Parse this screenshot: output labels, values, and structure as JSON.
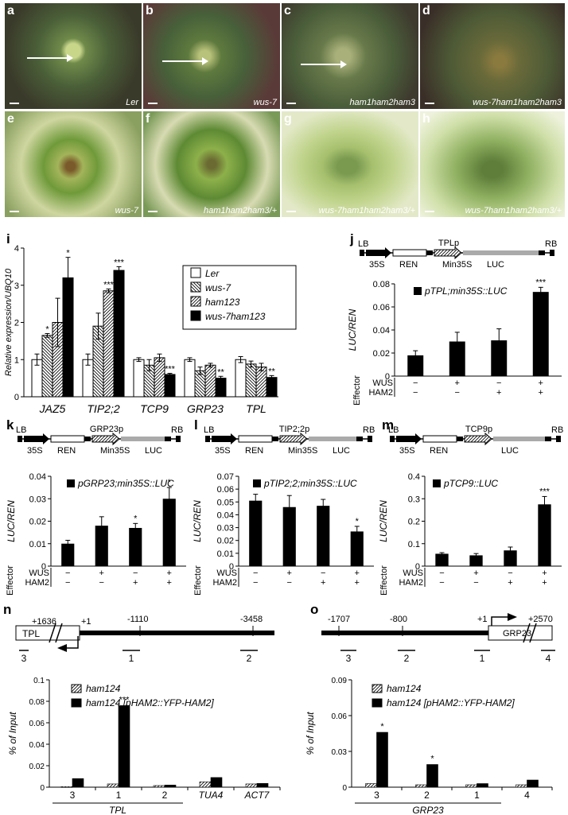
{
  "photos": [
    {
      "letter": "a",
      "caption": "Ler"
    },
    {
      "letter": "b",
      "caption": "wus-7"
    },
    {
      "letter": "c",
      "caption": "ham1ham2ham3"
    },
    {
      "letter": "d",
      "caption": "wus-7ham1ham2ham3"
    },
    {
      "letter": "e",
      "caption": "wus-7"
    },
    {
      "letter": "f",
      "caption": "ham1ham2ham3/+"
    },
    {
      "letter": "g",
      "caption": "wus-7ham1ham2ham3/+"
    },
    {
      "letter": "h",
      "caption": "wus-7ham1ham2ham3/+"
    }
  ],
  "chart_data": [
    {
      "panel": "i",
      "type": "bar",
      "ylabel": "Relative expression/UBQ10",
      "ylim": [
        0,
        4
      ],
      "yticks": [
        0,
        1,
        2,
        3,
        4
      ],
      "categories": [
        "JAZ5",
        "TIP2;2",
        "TCP9",
        "GRP23",
        "TPL"
      ],
      "series": [
        {
          "name": "Ler",
          "values": [
            1.0,
            1.0,
            1.0,
            1.0,
            1.0
          ],
          "errors": [
            0.15,
            0.15,
            0.05,
            0.05,
            0.08
          ]
        },
        {
          "name": "wus-7",
          "values": [
            1.65,
            1.9,
            0.85,
            0.7,
            0.88
          ],
          "errors": [
            0.05,
            0.35,
            0.15,
            0.1,
            0.08
          ]
        },
        {
          "name": "ham123",
          "values": [
            2.0,
            2.85,
            1.05,
            0.85,
            0.8
          ],
          "errors": [
            0.65,
            0.05,
            0.1,
            0.05,
            0.1
          ]
        },
        {
          "name": "wus-7ham123",
          "values": [
            3.2,
            3.4,
            0.6,
            0.5,
            0.52
          ],
          "errors": [
            0.55,
            0.1,
            0.03,
            0.05,
            0.05
          ]
        }
      ],
      "sig": [
        [
          "",
          "*",
          "",
          "*"
        ],
        [
          "",
          "",
          "***",
          "***"
        ],
        [
          "",
          "",
          "",
          "***"
        ],
        [
          "",
          "",
          "",
          "**"
        ],
        [
          "",
          "",
          "",
          "**"
        ]
      ]
    },
    {
      "panel": "j",
      "type": "bar",
      "legend": "pTPL;min35S::LUC",
      "ylabel": "LUC/REN",
      "ylim": [
        0,
        0.08
      ],
      "yticks": [
        "0",
        "0.02",
        "0.04",
        "0.06",
        "0.08"
      ],
      "values": [
        0.018,
        0.03,
        0.031,
        0.073
      ],
      "errors": [
        0.004,
        0.008,
        0.01,
        0.004
      ],
      "sig": [
        "",
        "",
        "",
        "***"
      ]
    },
    {
      "panel": "k",
      "type": "bar",
      "legend": "pGRP23;min35S::LUC",
      "ylabel": "LUC/REN",
      "ylim": [
        0,
        0.04
      ],
      "yticks": [
        "0",
        "0.01",
        "0.02",
        "0.03",
        "0.04"
      ],
      "values": [
        0.01,
        0.018,
        0.017,
        0.03
      ],
      "errors": [
        0.0015,
        0.004,
        0.002,
        0.005
      ],
      "sig": [
        "",
        "",
        "*",
        "*"
      ]
    },
    {
      "panel": "l",
      "type": "bar",
      "legend": "pTIP2;2;min35S::LUC",
      "ylabel": "LUC/REN",
      "ylim": [
        0,
        0.07
      ],
      "yticks": [
        "0",
        "0.01",
        "0.02",
        "0.03",
        "0.04",
        "0.05",
        "0.06",
        "0.07"
      ],
      "values": [
        0.051,
        0.046,
        0.047,
        0.027
      ],
      "errors": [
        0.005,
        0.009,
        0.005,
        0.004
      ],
      "sig": [
        "",
        "",
        "",
        "*"
      ]
    },
    {
      "panel": "m",
      "type": "bar",
      "legend": "pTCP9::LUC",
      "ylabel": "LUC/REN",
      "ylim": [
        0,
        0.4
      ],
      "yticks": [
        "0",
        "0.1",
        "0.2",
        "0.3",
        "0.4"
      ],
      "values": [
        0.055,
        0.048,
        0.07,
        0.275
      ],
      "errors": [
        0.005,
        0.008,
        0.015,
        0.035
      ],
      "sig": [
        "",
        "",
        "",
        "***"
      ]
    },
    {
      "panel": "n",
      "type": "bar",
      "ylabel": "% of Input",
      "ylim": [
        0,
        0.1
      ],
      "yticks": [
        "0",
        "0.02",
        "0.04",
        "0.06",
        "0.08",
        "0.1"
      ],
      "categories": [
        "3",
        "1",
        "2",
        "TUA4",
        "ACT7"
      ],
      "group_label": "TPL",
      "series": [
        {
          "name": "ham124",
          "values": [
            0.0005,
            0.003,
            0.0015,
            0.005,
            0.003
          ]
        },
        {
          "name": "ham124 [pHAM2::YFP-HAM2]",
          "values": [
            0.008,
            0.076,
            0.002,
            0.009,
            0.0035
          ]
        }
      ],
      "sig": [
        "",
        "***",
        "",
        "",
        ""
      ]
    },
    {
      "panel": "o",
      "type": "bar",
      "ylabel": "% of Input",
      "ylim": [
        0,
        0.09
      ],
      "yticks": [
        "0",
        "0.03",
        "0.06",
        "0.09"
      ],
      "categories": [
        "3",
        "2",
        "1",
        "4"
      ],
      "group_label": "GRP23",
      "series": [
        {
          "name": "ham124",
          "values": [
            0.003,
            0.002,
            0.002,
            0.002
          ]
        },
        {
          "name": "ham124 [pHAM2::YFP-HAM2]",
          "values": [
            0.046,
            0.019,
            0.003,
            0.006
          ]
        }
      ],
      "sig": [
        "*",
        "*",
        "",
        ""
      ]
    }
  ],
  "effector": {
    "title": "Effector",
    "rows": [
      "WUS",
      "HAM2"
    ],
    "wus": [
      "−",
      "+",
      "−",
      "+"
    ],
    "ham2": [
      "−",
      "−",
      "+",
      "+"
    ]
  },
  "constructs": {
    "j": {
      "promoter": "TPLp",
      "lb": "LB",
      "rb": "RB",
      "s35": "35S",
      "ren": "REN",
      "min": "Min35S",
      "luc": "LUC"
    },
    "k": {
      "promoter": "GRP23p",
      "lb": "LB",
      "rb": "RB",
      "s35": "35S",
      "ren": "REN",
      "min": "Min35S",
      "luc": "LUC"
    },
    "l": {
      "promoter": "TIP2;2p",
      "lb": "LB",
      "rb": "RB",
      "s35": "35S",
      "ren": "REN",
      "min": "Min35S",
      "luc": "LUC"
    },
    "m": {
      "promoter": "TCP9p",
      "lb": "LB",
      "rb": "RB",
      "s35": "35S",
      "ren": "REN",
      "luc": "LUC"
    }
  },
  "gene_maps": {
    "n": {
      "gene": "TPL",
      "pos": [
        "+1636",
        "+1",
        "-1110",
        "-3458"
      ],
      "regions": [
        "3",
        "1",
        "2"
      ]
    },
    "o": {
      "gene": "GRP23",
      "pos": [
        "-1707",
        "-800",
        "+1",
        "+2570"
      ],
      "regions": [
        "3",
        "2",
        "1",
        "4"
      ]
    }
  },
  "panel_letters": [
    "i",
    "j",
    "k",
    "l",
    "m",
    "n",
    "o"
  ]
}
